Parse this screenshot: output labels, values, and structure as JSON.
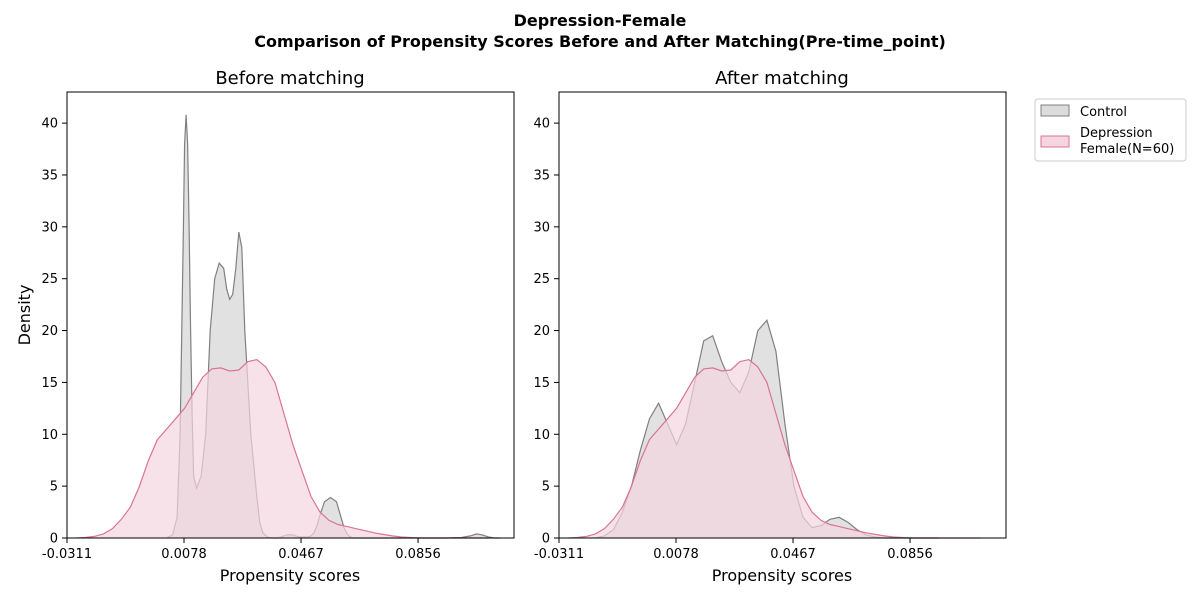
{
  "figure": {
    "suptitle_line1": "Depression-Female",
    "suptitle_line2": "Comparison of Propensity Scores Before and After Matching(Pre-time_point)"
  },
  "legend": {
    "placement": "outside-top-right",
    "entries": [
      {
        "label": "Control",
        "fill": "#dcdcdc",
        "stroke": "#808080"
      },
      {
        "label_line1": "Depression",
        "label_line2": "Female(N=60)",
        "fill": "#f5d5e0",
        "stroke": "#d9739a"
      }
    ]
  },
  "chart_data": [
    {
      "type": "area",
      "title": "Before matching",
      "xlabel": "Propensity scores",
      "ylabel": "Density",
      "xlim": [
        -0.0311,
        0.1175
      ],
      "ylim": [
        0,
        43
      ],
      "x_ticks": [
        "-0.0311",
        "0.0078",
        "0.0467",
        "0.0856"
      ],
      "x_tick_values": [
        -0.0311,
        0.0078,
        0.0467,
        0.0856
      ],
      "y_ticks": [
        0,
        5,
        10,
        15,
        20,
        25,
        30,
        35,
        40
      ],
      "grid": false,
      "series": [
        {
          "name": "Control",
          "color": "#808080",
          "x": [
            0.002,
            0.004,
            0.0055,
            0.0065,
            0.0075,
            0.008,
            0.0085,
            0.009,
            0.0095,
            0.01,
            0.0105,
            0.011,
            0.012,
            0.0135,
            0.015,
            0.0165,
            0.018,
            0.0195,
            0.021,
            0.022,
            0.023,
            0.024,
            0.025,
            0.026,
            0.027,
            0.028,
            0.029,
            0.03,
            0.031,
            0.032,
            0.033,
            0.034,
            0.0355,
            0.037,
            0.038,
            0.039,
            0.04,
            0.041,
            0.042,
            0.043,
            0.044,
            0.045,
            0.046,
            0.047,
            0.048,
            0.049,
            0.05,
            0.051,
            0.052,
            0.053,
            0.0545,
            0.0565,
            0.0585,
            0.06,
            0.061,
            0.062,
            0.063,
            0.064,
            0.065,
            0.0665,
            0.069,
            0.072,
            0.076,
            0.08,
            0.085,
            0.09,
            0.095,
            0.1,
            0.103,
            0.105,
            0.107,
            0.109,
            0.111,
            0.113
          ],
          "y": [
            0,
            0.3,
            2,
            10,
            28,
            38,
            40.8,
            38,
            30,
            20,
            12,
            6,
            4.8,
            6,
            10,
            20,
            25,
            26.5,
            26,
            24,
            23,
            23.5,
            26,
            29.5,
            28,
            20,
            15,
            10,
            7,
            4,
            1.5,
            0.5,
            0.1,
            0,
            0,
            0,
            0.1,
            0.2,
            0.3,
            0.3,
            0.3,
            0.2,
            0.1,
            0.1,
            0.1,
            0.1,
            0.2,
            0.5,
            1.2,
            2.2,
            3.5,
            3.9,
            3.5,
            2,
            1,
            0.4,
            0.1,
            0,
            0,
            0,
            0,
            0,
            0,
            0,
            0,
            0,
            0,
            0.05,
            0.2,
            0.4,
            0.3,
            0.1,
            0,
            0
          ]
        },
        {
          "name": "Depression Female(N=60)",
          "color": "#d9739a",
          "x": [
            -0.028,
            -0.025,
            -0.022,
            -0.019,
            -0.016,
            -0.013,
            -0.01,
            -0.007,
            -0.004,
            -0.001,
            0.002,
            0.005,
            0.008,
            0.011,
            0.014,
            0.017,
            0.02,
            0.023,
            0.026,
            0.029,
            0.032,
            0.035,
            0.038,
            0.041,
            0.044,
            0.047,
            0.05,
            0.053,
            0.056,
            0.059,
            0.062,
            0.065,
            0.068,
            0.071,
            0.074,
            0.077,
            0.08,
            0.083,
            0.086,
            0.089,
            0.092,
            0.095,
            0.098,
            0.101,
            0.104,
            0.107,
            0.109
          ],
          "y": [
            0,
            0.05,
            0.15,
            0.4,
            0.9,
            1.8,
            3,
            5,
            7.5,
            9.5,
            10.5,
            11.5,
            12.5,
            14,
            15.5,
            16.3,
            16.4,
            16.1,
            16.2,
            17,
            17.2,
            16.5,
            15,
            12,
            9,
            6.5,
            4,
            2.5,
            1.7,
            1.3,
            1.1,
            0.9,
            0.7,
            0.5,
            0.35,
            0.2,
            0.1,
            0.05,
            0,
            0,
            0,
            0,
            0,
            0,
            0,
            0,
            0
          ]
        }
      ]
    },
    {
      "type": "area",
      "title": "After matching",
      "xlabel": "Propensity scores",
      "ylabel": "",
      "xlim": [
        -0.0311,
        0.1175
      ],
      "ylim": [
        0,
        43
      ],
      "x_ticks": [
        "-0.0311",
        "0.0078",
        "0.0467",
        "0.0856"
      ],
      "x_tick_values": [
        -0.0311,
        0.0078,
        0.0467,
        0.0856
      ],
      "y_ticks": [
        0,
        5,
        10,
        15,
        20,
        25,
        30,
        35,
        40
      ],
      "grid": false,
      "series": [
        {
          "name": "Control",
          "color": "#808080",
          "x": [
            -0.019,
            -0.016,
            -0.013,
            -0.01,
            -0.007,
            -0.004,
            -0.001,
            0.002,
            0.005,
            0.008,
            0.011,
            0.014,
            0.017,
            0.02,
            0.023,
            0.026,
            0.029,
            0.032,
            0.035,
            0.038,
            0.041,
            0.044,
            0.047,
            0.05,
            0.053,
            0.056,
            0.059,
            0.062,
            0.065,
            0.068,
            0.071,
            0.074,
            0.077,
            0.08,
            0.083,
            0.086,
            0.089,
            0.092,
            0.095
          ],
          "y": [
            0,
            0.2,
            0.8,
            2.5,
            5,
            8.5,
            11.5,
            13,
            11,
            9,
            11,
            15,
            19,
            19.5,
            17,
            15,
            14,
            16,
            20,
            21,
            18,
            11,
            5,
            2,
            1,
            1.2,
            1.8,
            2,
            1.5,
            0.8,
            0.3,
            0.1,
            0,
            0,
            0,
            0,
            0,
            0,
            0
          ]
        },
        {
          "name": "Depression Female(N=60)",
          "color": "#d9739a",
          "x": [
            -0.028,
            -0.025,
            -0.022,
            -0.019,
            -0.016,
            -0.013,
            -0.01,
            -0.007,
            -0.004,
            -0.001,
            0.002,
            0.005,
            0.008,
            0.011,
            0.014,
            0.017,
            0.02,
            0.023,
            0.026,
            0.029,
            0.032,
            0.035,
            0.038,
            0.041,
            0.044,
            0.047,
            0.05,
            0.053,
            0.056,
            0.059,
            0.062,
            0.065,
            0.068,
            0.071,
            0.074,
            0.077,
            0.08,
            0.083,
            0.086,
            0.089,
            0.092,
            0.095,
            0.098,
            0.101,
            0.104,
            0.107,
            0.109
          ],
          "y": [
            0,
            0.05,
            0.15,
            0.4,
            0.9,
            1.8,
            3,
            5,
            7.5,
            9.5,
            10.5,
            11.5,
            12.5,
            14,
            15.5,
            16.3,
            16.4,
            16.1,
            16.2,
            17,
            17.2,
            16.5,
            15,
            12,
            9,
            6.5,
            4,
            2.5,
            1.7,
            1.3,
            1.1,
            0.9,
            0.7,
            0.5,
            0.35,
            0.2,
            0.1,
            0.05,
            0,
            0,
            0,
            0,
            0,
            0,
            0,
            0,
            0
          ]
        }
      ]
    }
  ]
}
